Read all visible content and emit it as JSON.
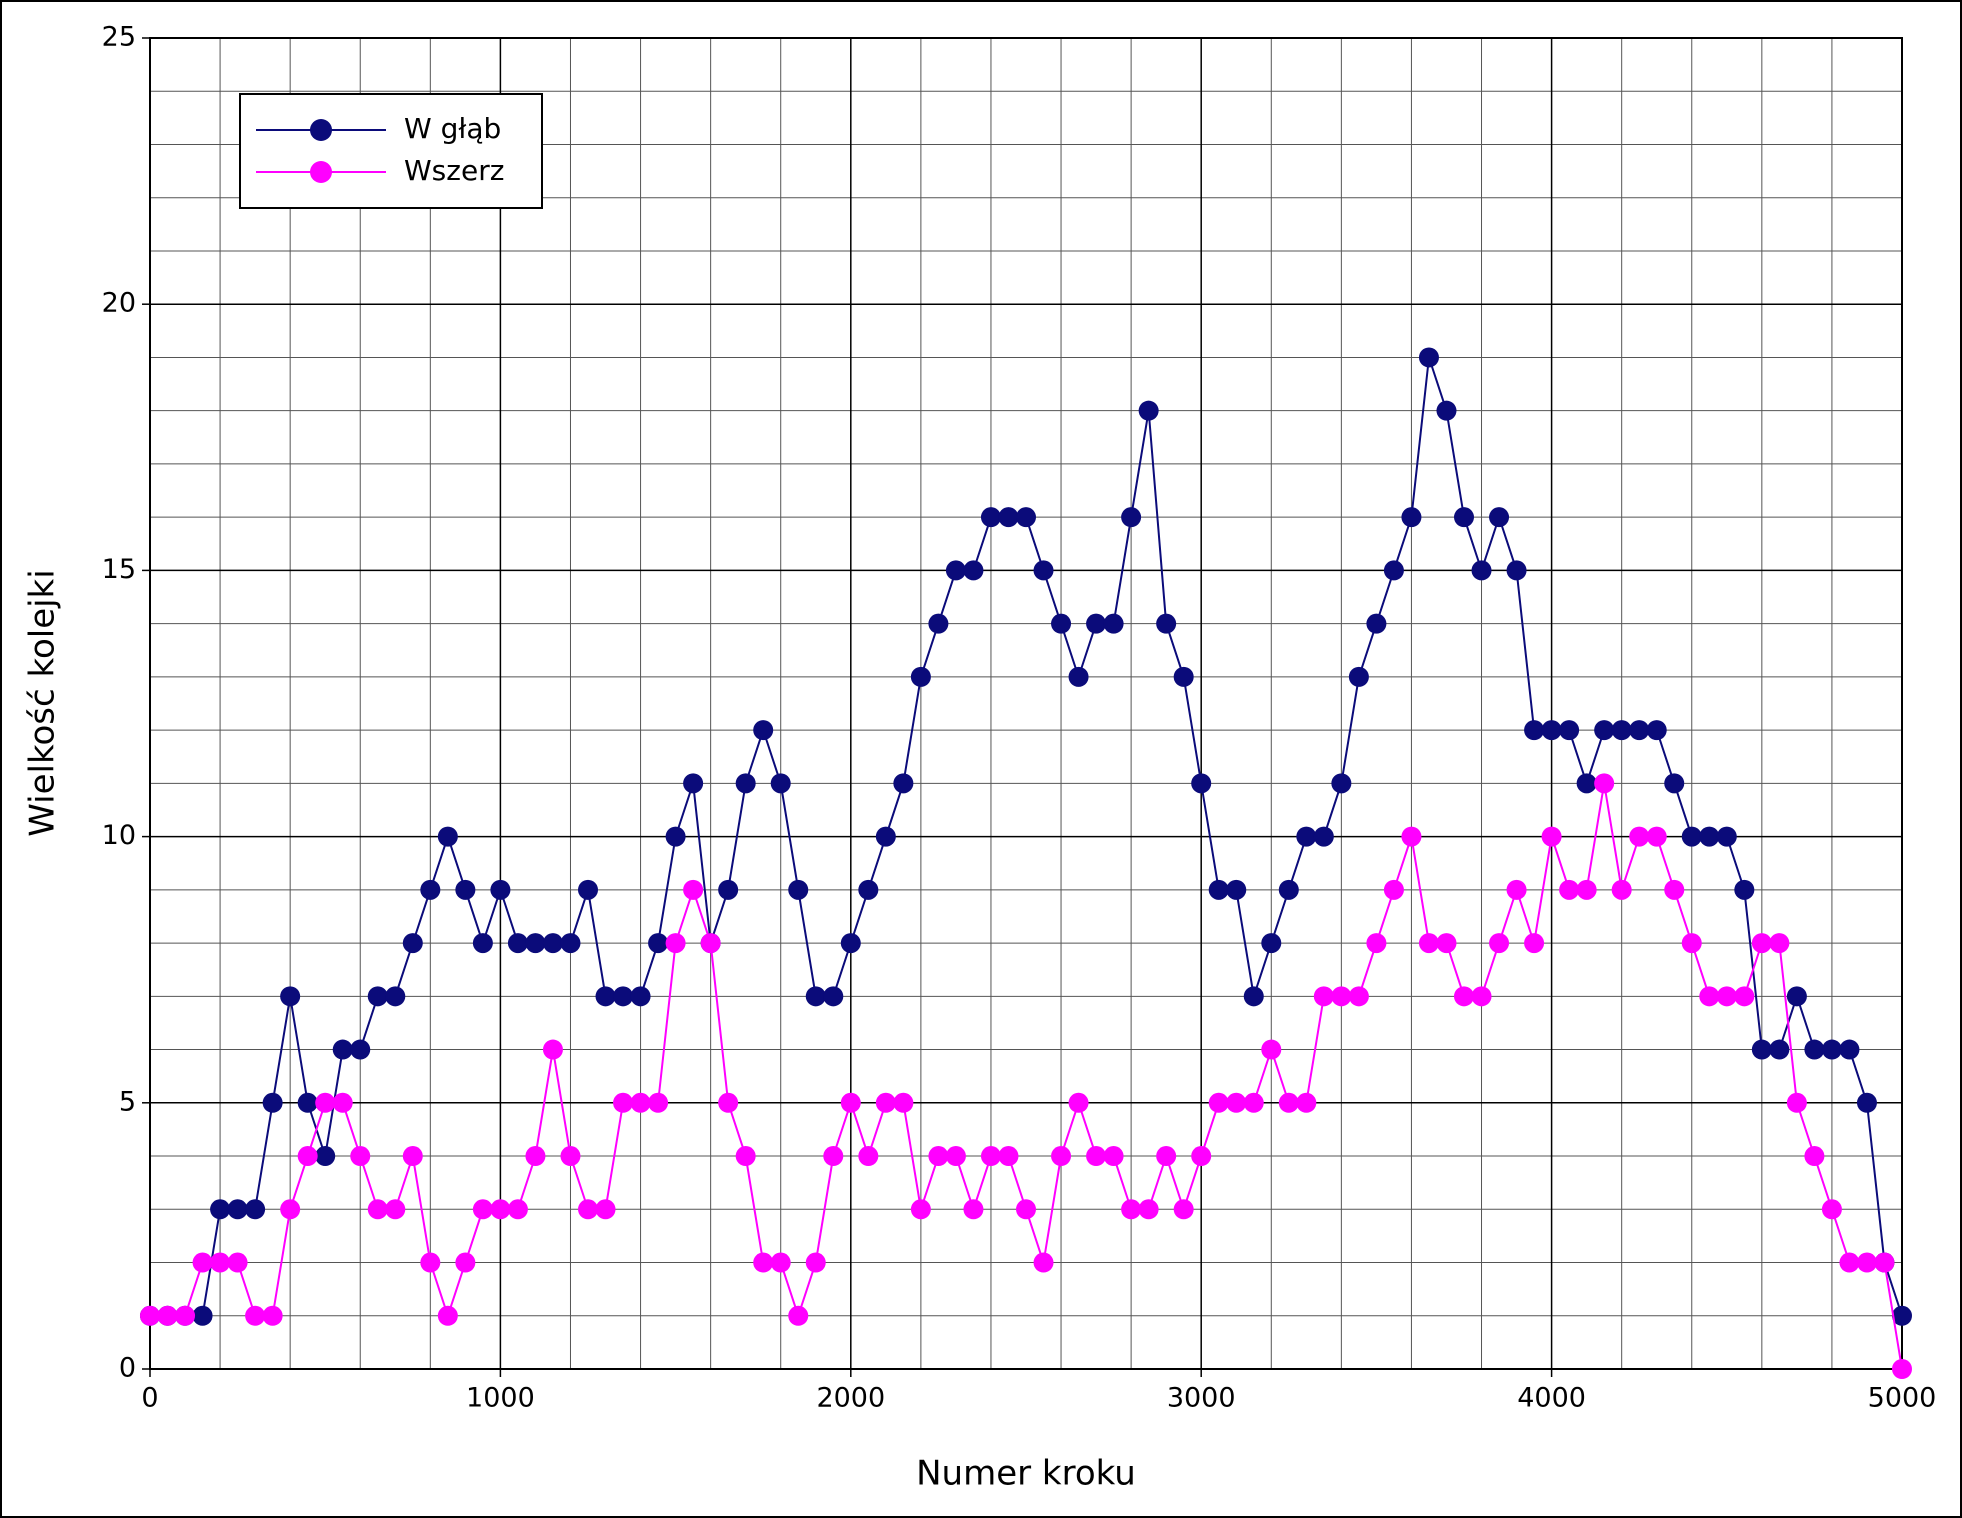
{
  "chart_data": {
    "type": "line",
    "xlabel": "Numer kroku",
    "ylabel": "Wielkość kolejki",
    "x": [
      0,
      50,
      100,
      150,
      200,
      250,
      300,
      350,
      400,
      450,
      500,
      550,
      600,
      650,
      700,
      750,
      800,
      850,
      900,
      950,
      1000,
      1050,
      1100,
      1150,
      1200,
      1250,
      1300,
      1350,
      1400,
      1450,
      1500,
      1550,
      1600,
      1650,
      1700,
      1750,
      1800,
      1850,
      1900,
      1950,
      2000,
      2050,
      2100,
      2150,
      2200,
      2250,
      2300,
      2350,
      2400,
      2450,
      2500,
      2550,
      2600,
      2650,
      2700,
      2750,
      2800,
      2850,
      2900,
      2950,
      3000,
      3050,
      3100,
      3150,
      3200,
      3250,
      3300,
      3350,
      3400,
      3450,
      3500,
      3550,
      3600,
      3650,
      3700,
      3750,
      3800,
      3850,
      3900,
      3950,
      4000,
      4050,
      4100,
      4150,
      4200,
      4250,
      4300,
      4350,
      4400,
      4450,
      4500,
      4550,
      4600,
      4650,
      4700,
      4750,
      4800,
      4850,
      4900,
      4950,
      5000
    ],
    "series": [
      {
        "name": "W głąb",
        "color": "#0b0b7a",
        "values": [
          1,
          1,
          1,
          1,
          3,
          3,
          3,
          5,
          7,
          5,
          4,
          6,
          6,
          7,
          7,
          8,
          9,
          10,
          9,
          8,
          9,
          8,
          8,
          8,
          8,
          9,
          7,
          7,
          7,
          8,
          10,
          11,
          8,
          9,
          11,
          12,
          11,
          9,
          7,
          7,
          8,
          9,
          10,
          11,
          13,
          14,
          15,
          15,
          16,
          16,
          16,
          15,
          14,
          13,
          14,
          14,
          16,
          18,
          14,
          13,
          11,
          9,
          9,
          7,
          8,
          9,
          10,
          10,
          11,
          13,
          14,
          15,
          16,
          19,
          18,
          16,
          15,
          16,
          15,
          12,
          12,
          12,
          11,
          12,
          12,
          12,
          12,
          11,
          10,
          10,
          10,
          9,
          6,
          6,
          7,
          6,
          6,
          6,
          5,
          2,
          1
        ]
      },
      {
        "name": "Wszerz",
        "color": "#ff00ff",
        "values": [
          1,
          1,
          1,
          2,
          2,
          2,
          1,
          1,
          3,
          4,
          5,
          5,
          4,
          3,
          3,
          4,
          2,
          1,
          2,
          3,
          3,
          3,
          4,
          6,
          4,
          3,
          3,
          5,
          5,
          5,
          8,
          9,
          8,
          5,
          4,
          2,
          2,
          1,
          2,
          4,
          5,
          4,
          5,
          5,
          3,
          4,
          4,
          3,
          4,
          4,
          3,
          2,
          4,
          5,
          4,
          4,
          3,
          3,
          4,
          3,
          4,
          5,
          5,
          5,
          6,
          5,
          5,
          7,
          7,
          7,
          8,
          9,
          10,
          8,
          8,
          7,
          7,
          8,
          9,
          8,
          10,
          9,
          9,
          11,
          9,
          10,
          10,
          9,
          8,
          7,
          7,
          7,
          8,
          8,
          5,
          4,
          3,
          2,
          2,
          2,
          0
        ]
      }
    ],
    "xlim": [
      0,
      5000
    ],
    "ylim": [
      0,
      25
    ],
    "xticks": [
      0,
      1000,
      2000,
      3000,
      4000,
      5000
    ],
    "yticks": [
      0,
      5,
      10,
      15,
      20,
      25
    ],
    "minor_xticks": [
      200,
      400,
      600,
      800,
      1200,
      1400,
      1600,
      1800,
      2200,
      2400,
      2600,
      2800,
      3200,
      3400,
      3600,
      3800,
      4200,
      4400,
      4600,
      4800
    ],
    "minor_yticks": [
      1,
      2,
      3,
      4,
      6,
      7,
      8,
      9,
      11,
      12,
      13,
      14,
      16,
      17,
      18,
      19,
      21,
      22,
      23,
      24
    ],
    "grid": true,
    "markers": true,
    "legend": "upper left"
  }
}
